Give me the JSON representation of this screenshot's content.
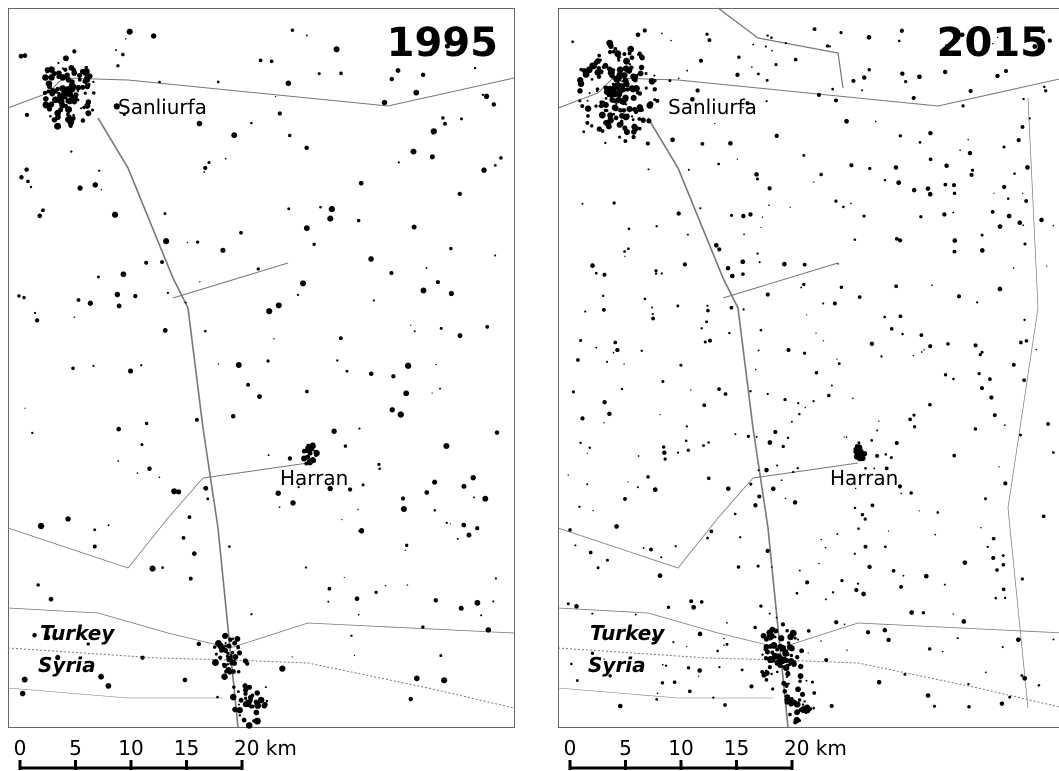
{
  "panels": [
    {
      "year": "1995",
      "labels": {
        "city": "Sanliurfa",
        "town": "Harran",
        "north": "Turkey",
        "south": "Syria"
      },
      "scale": [
        "0",
        "5",
        "10",
        "15",
        "20 km"
      ]
    },
    {
      "year": "2015",
      "labels": {
        "city": "Sanliurfa",
        "town": "Harran",
        "north": "Turkey",
        "south": "Syria"
      },
      "scale": [
        "0",
        "5",
        "10",
        "15",
        "20 km"
      ]
    }
  ]
}
